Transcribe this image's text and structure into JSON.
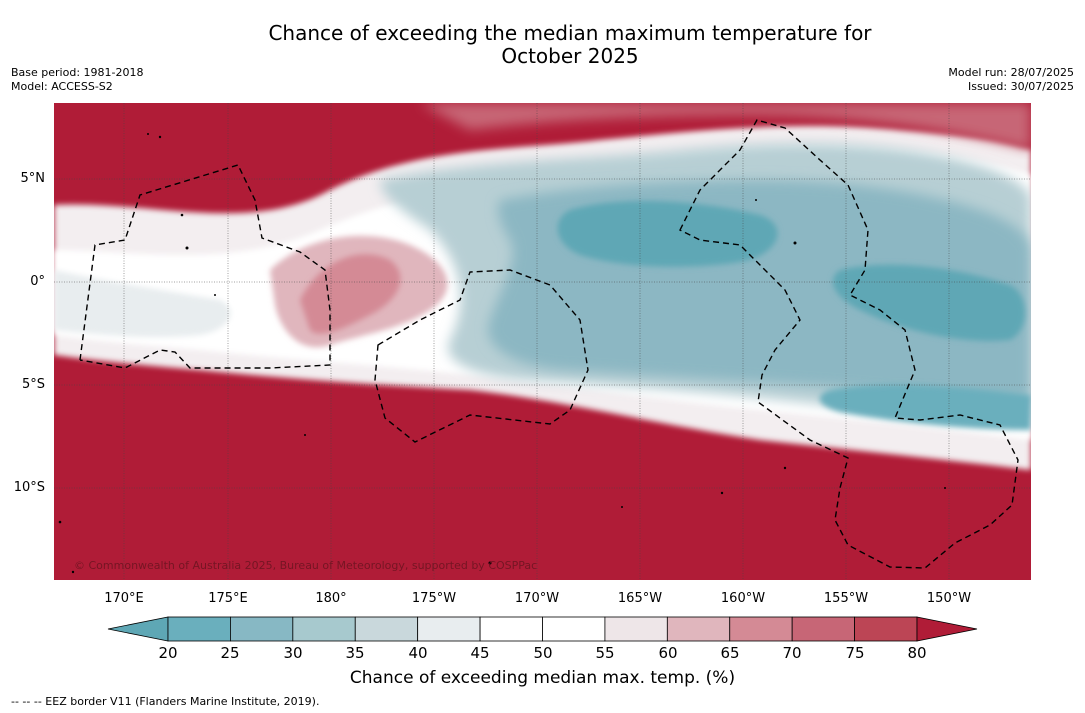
{
  "title_line1": "Chance of exceeding the median maximum temperature for",
  "title_line2": "October 2025",
  "meta_left": [
    "Base period: 1981-2018",
    "Model: ACCESS-S2"
  ],
  "meta_right": [
    "Model run: 28/07/2025",
    "Issued: 30/07/2025"
  ],
  "copyright": "© Commonwealth of Australia 2025, Bureau of Meteorology, supported by COSPPac",
  "lat_labels": [
    "5°N",
    "0°",
    "5°S",
    "10°S"
  ],
  "lon_labels": [
    "170°E",
    "175°E",
    "180°",
    "175°W",
    "170°W",
    "165°W",
    "160°W",
    "155°W",
    "150°W"
  ],
  "colorbar": {
    "ticks": [
      "20",
      "25",
      "30",
      "35",
      "40",
      "45",
      "50",
      "55",
      "60",
      "65",
      "70",
      "75",
      "80"
    ],
    "colors": [
      "#5ea7b5",
      "#6aafbd",
      "#87b8c4",
      "#a7c9ce",
      "#c9d8dc",
      "#e8edef",
      "#ffffff",
      "#ffffff",
      "#eee6e8",
      "#e0b6bd",
      "#d48a95",
      "#c76676",
      "#bc4555",
      "#b01c37"
    ],
    "label": "Chance of exceeding median max. temp. (%)"
  },
  "eez_note": "-- -- -- EEZ border V11 (Flanders Marine Institute, 2019)."
}
